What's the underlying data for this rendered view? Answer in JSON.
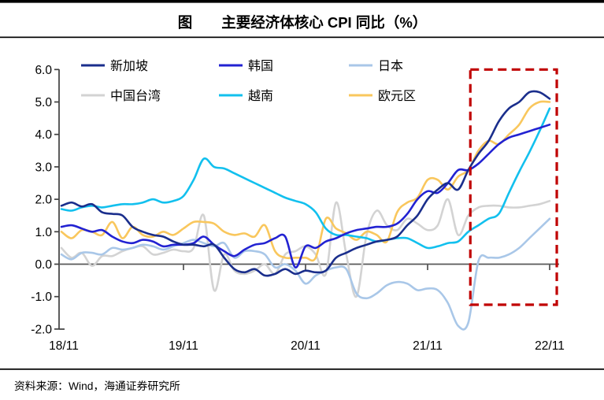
{
  "page": {
    "title": "图　　主要经济体核心 CPI 同比（%）",
    "source_note": "资料来源：Wind，海通证券研究所"
  },
  "chart_data": {
    "type": "line",
    "title": "主要经济体核心 CPI 同比（%）",
    "xlabel": "",
    "ylabel": "",
    "x_unit": "monthly, Nov 2018 - Nov 2022 (49 points per series)",
    "x_ticks": [
      "18/11",
      "19/11",
      "20/11",
      "21/11",
      "22/11"
    ],
    "y_ticks": [
      "6.0",
      "5.0",
      "4.0",
      "3.0",
      "2.0",
      "1.0",
      "0.0",
      "-1.0",
      "-2.0"
    ],
    "ylim": [
      -2.0,
      6.0
    ],
    "grid": false,
    "legend_position": "top",
    "axis_color": "#404040",
    "zero_line_color": "#595959",
    "series": [
      {
        "name": "新加坡",
        "color": "#1A2E8C",
        "values": [
          1.8,
          1.9,
          1.78,
          1.85,
          1.6,
          1.55,
          1.5,
          1.15,
          1.0,
          0.9,
          0.85,
          0.7,
          0.6,
          0.6,
          0.55,
          0.6,
          0.2,
          -0.15,
          -0.25,
          -0.15,
          -0.35,
          -0.3,
          -0.15,
          -0.3,
          -0.2,
          -0.25,
          -0.2,
          0.2,
          0.35,
          0.5,
          0.6,
          0.7,
          0.75,
          0.85,
          1.2,
          1.5,
          2.0,
          2.3,
          2.5,
          2.3,
          2.9,
          3.4,
          3.8,
          4.4,
          4.8,
          5.0,
          5.3,
          5.3,
          5.1
        ]
      },
      {
        "name": "韩国",
        "color": "#2222D2",
        "values": [
          1.15,
          1.2,
          1.1,
          1.0,
          1.05,
          0.85,
          0.7,
          0.65,
          0.75,
          0.7,
          0.55,
          0.6,
          0.6,
          0.65,
          0.85,
          0.6,
          0.4,
          0.25,
          0.45,
          0.6,
          0.65,
          0.8,
          0.85,
          -0.1,
          0.55,
          0.5,
          0.7,
          0.8,
          0.95,
          1.05,
          1.1,
          1.15,
          1.15,
          1.25,
          1.55,
          2.0,
          2.25,
          2.2,
          2.5,
          2.9,
          2.9,
          3.1,
          3.4,
          3.7,
          3.9,
          4.0,
          4.1,
          4.2,
          4.3
        ]
      },
      {
        "name": "日本",
        "color": "#A9C7E8",
        "values": [
          0.3,
          0.15,
          0.35,
          0.35,
          0.3,
          0.5,
          0.45,
          0.5,
          0.6,
          0.55,
          0.45,
          0.55,
          0.65,
          0.75,
          0.65,
          0.55,
          0.65,
          0.2,
          0.4,
          0.4,
          0.3,
          -0.1,
          0.0,
          -0.2,
          -0.6,
          -0.35,
          -0.2,
          -0.1,
          -0.15,
          -0.9,
          -1.05,
          -0.9,
          -0.65,
          -0.55,
          -0.6,
          -0.8,
          -0.75,
          -0.8,
          -1.2,
          -1.9,
          -1.8,
          0.1,
          0.2,
          0.2,
          0.3,
          0.5,
          0.8,
          1.1,
          1.4
        ]
      },
      {
        "name": "中国台湾",
        "color": "#D3D3D3",
        "values": [
          0.5,
          0.2,
          0.35,
          -0.05,
          0.25,
          0.25,
          0.4,
          0.5,
          0.55,
          0.3,
          0.35,
          0.45,
          0.4,
          0.5,
          1.5,
          -0.8,
          0.3,
          -0.2,
          -0.3,
          -0.2,
          0.0,
          -0.3,
          0.3,
          0.4,
          0.55,
          0.3,
          -0.3,
          1.9,
          0.3,
          -1.0,
          0.9,
          1.65,
          1.2,
          1.05,
          1.4,
          1.25,
          1.05,
          1.2,
          2.0,
          0.9,
          1.5,
          1.75,
          1.8,
          1.8,
          1.75,
          1.75,
          1.8,
          1.85,
          1.95
        ]
      },
      {
        "name": "越南",
        "color": "#12C0EE",
        "values": [
          1.7,
          1.65,
          1.75,
          1.8,
          1.75,
          1.8,
          1.85,
          1.85,
          1.9,
          2.0,
          1.9,
          1.95,
          2.1,
          2.6,
          3.25,
          3.0,
          2.95,
          2.8,
          2.65,
          2.5,
          2.35,
          2.2,
          2.05,
          1.95,
          1.85,
          1.6,
          1.1,
          0.9,
          0.9,
          0.85,
          0.8,
          0.7,
          0.75,
          0.8,
          0.8,
          0.65,
          0.5,
          0.55,
          0.65,
          0.7,
          1.0,
          1.2,
          1.4,
          1.55,
          2.2,
          2.85,
          3.45,
          4.1,
          4.8
        ]
      },
      {
        "name": "欧元区",
        "color": "#F9C75D",
        "values": [
          1.0,
          0.8,
          1.05,
          1.0,
          0.9,
          1.3,
          0.8,
          1.15,
          0.9,
          0.85,
          1.0,
          0.9,
          1.1,
          1.3,
          1.3,
          1.25,
          1.0,
          0.9,
          0.95,
          0.85,
          1.2,
          0.4,
          0.2,
          0.2,
          0.2,
          0.2,
          1.4,
          1.1,
          0.95,
          0.75,
          1.0,
          0.9,
          0.7,
          1.6,
          1.9,
          2.05,
          2.6,
          2.6,
          2.3,
          2.7,
          2.9,
          3.5,
          3.8,
          3.7,
          4.0,
          4.3,
          4.8,
          5.0,
          5.0
        ]
      }
    ],
    "annotations": {
      "highlight_box": {
        "color": "#C00000",
        "style": "dashed",
        "from_month_index": 40.2,
        "to_month_index": 48.7,
        "y_top": 6.0,
        "y_bottom": -1.25,
        "meaning": "highlights the most recent months (since ~Apr 2022)"
      }
    }
  }
}
